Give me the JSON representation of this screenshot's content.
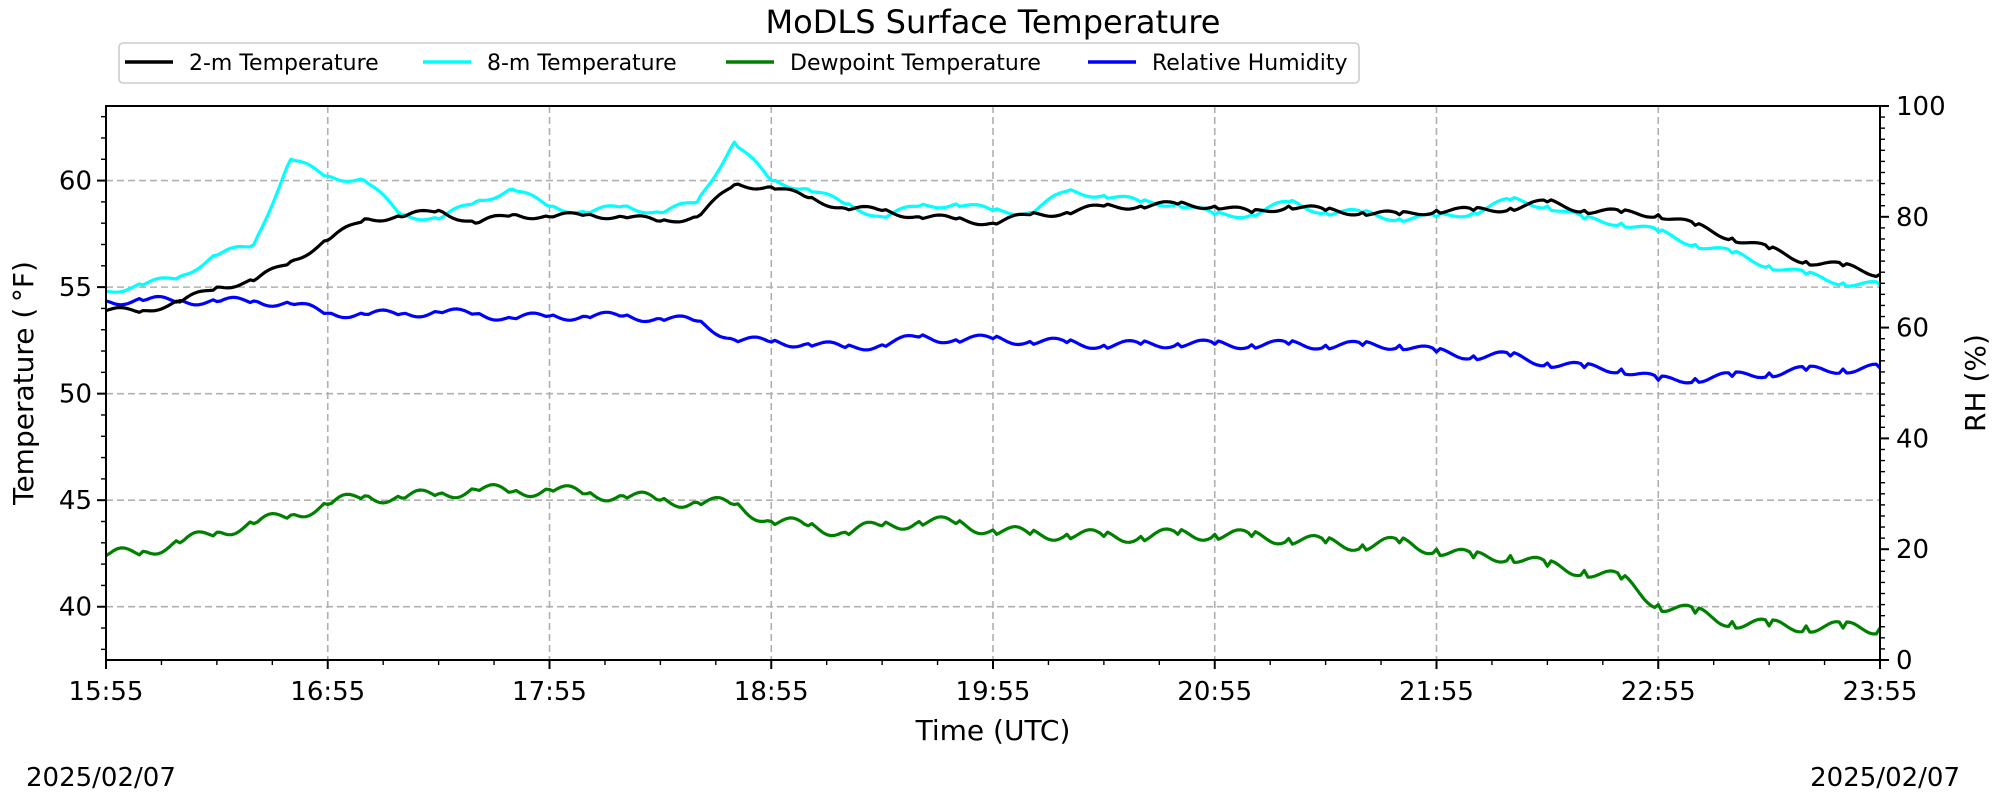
{
  "chart_data": {
    "type": "line",
    "title": "MoDLS Surface Temperature",
    "xlabel": "Time (UTC)",
    "ylabel": "Temperature ($^\\circ$F)",
    "ylabel_display": "Temperature ( °F)",
    "y2label": "RH (%)",
    "x_ticks": [
      "15:55",
      "16:55",
      "17:55",
      "18:55",
      "19:55",
      "20:55",
      "21:55",
      "22:55",
      "23:55"
    ],
    "xlim": [
      "15:55",
      "23:55"
    ],
    "ylim": [
      37.5,
      63.5
    ],
    "y_ticks": [
      40,
      45,
      50,
      55,
      60
    ],
    "y2lim": [
      0,
      100
    ],
    "y2_ticks": [
      0,
      20,
      40,
      60,
      80,
      100
    ],
    "grid": true,
    "legend_position": "top-left, above plot",
    "date_left": "2025/02/07",
    "date_right": "2025/02/07",
    "series": [
      {
        "name": "2-m Temperature",
        "axis": "left",
        "color": "#000000",
        "points": [
          [
            "15:55",
            53.9
          ],
          [
            "16:05",
            53.9
          ],
          [
            "16:15",
            54.3
          ],
          [
            "16:25",
            55.0
          ],
          [
            "16:35",
            55.3
          ],
          [
            "16:45",
            56.2
          ],
          [
            "16:55",
            57.2
          ],
          [
            "17:05",
            58.2
          ],
          [
            "17:15",
            58.3
          ],
          [
            "17:25",
            58.6
          ],
          [
            "17:35",
            58.0
          ],
          [
            "17:45",
            58.4
          ],
          [
            "17:55",
            58.3
          ],
          [
            "18:05",
            58.4
          ],
          [
            "18:15",
            58.3
          ],
          [
            "18:25",
            58.1
          ],
          [
            "18:35",
            58.3
          ],
          [
            "18:45",
            59.8
          ],
          [
            "18:55",
            59.7
          ],
          [
            "19:05",
            59.2
          ],
          [
            "19:15",
            58.7
          ],
          [
            "19:25",
            58.6
          ],
          [
            "19:35",
            58.3
          ],
          [
            "19:45",
            58.2
          ],
          [
            "19:55",
            58.0
          ],
          [
            "20:05",
            58.4
          ],
          [
            "20:15",
            58.5
          ],
          [
            "20:25",
            58.8
          ],
          [
            "20:35",
            58.8
          ],
          [
            "20:45",
            58.9
          ],
          [
            "20:55",
            58.8
          ],
          [
            "21:05",
            58.5
          ],
          [
            "21:15",
            58.8
          ],
          [
            "21:25",
            58.6
          ],
          [
            "21:35",
            58.5
          ],
          [
            "21:45",
            58.4
          ],
          [
            "21:55",
            58.6
          ],
          [
            "22:05",
            58.6
          ],
          [
            "22:15",
            58.7
          ],
          [
            "22:25",
            59.0
          ],
          [
            "22:35",
            58.6
          ],
          [
            "22:45",
            58.5
          ],
          [
            "22:55",
            58.4
          ],
          [
            "23:05",
            57.9
          ],
          [
            "23:15",
            57.3
          ],
          [
            "23:25",
            56.8
          ],
          [
            "23:35",
            56.2
          ],
          [
            "23:45",
            56.0
          ],
          [
            "23:55",
            55.6
          ]
        ]
      },
      {
        "name": "8-m Temperature",
        "axis": "left",
        "color": "#00ffff",
        "points": [
          [
            "15:55",
            54.8
          ],
          [
            "16:05",
            55.1
          ],
          [
            "16:15",
            55.5
          ],
          [
            "16:25",
            56.5
          ],
          [
            "16:35",
            57.0
          ],
          [
            "16:45",
            61.0
          ],
          [
            "16:55",
            60.2
          ],
          [
            "17:05",
            60.0
          ],
          [
            "17:15",
            58.4
          ],
          [
            "17:25",
            58.2
          ],
          [
            "17:35",
            59.0
          ],
          [
            "17:45",
            59.6
          ],
          [
            "17:55",
            58.8
          ],
          [
            "18:05",
            58.5
          ],
          [
            "18:15",
            58.8
          ],
          [
            "18:25",
            58.5
          ],
          [
            "18:35",
            59.0
          ],
          [
            "18:45",
            61.8
          ],
          [
            "18:55",
            60.0
          ],
          [
            "19:05",
            59.6
          ],
          [
            "19:15",
            58.9
          ],
          [
            "19:25",
            58.3
          ],
          [
            "19:35",
            58.8
          ],
          [
            "19:45",
            58.9
          ],
          [
            "19:55",
            58.6
          ],
          [
            "20:05",
            58.5
          ],
          [
            "20:15",
            59.5
          ],
          [
            "20:25",
            59.3
          ],
          [
            "20:35",
            59.0
          ],
          [
            "20:45",
            58.9
          ],
          [
            "20:55",
            58.4
          ],
          [
            "21:05",
            58.4
          ],
          [
            "21:15",
            59.0
          ],
          [
            "21:25",
            58.5
          ],
          [
            "21:35",
            58.5
          ],
          [
            "21:45",
            58.2
          ],
          [
            "21:55",
            58.3
          ],
          [
            "22:05",
            58.5
          ],
          [
            "22:15",
            59.1
          ],
          [
            "22:25",
            58.8
          ],
          [
            "22:35",
            58.2
          ],
          [
            "22:45",
            58.0
          ],
          [
            "22:55",
            57.6
          ],
          [
            "23:05",
            57.0
          ],
          [
            "23:15",
            56.6
          ],
          [
            "23:25",
            56.0
          ],
          [
            "23:35",
            55.6
          ],
          [
            "23:45",
            55.2
          ],
          [
            "23:55",
            55.1
          ]
        ]
      },
      {
        "name": "Dewpoint Temperature",
        "axis": "left",
        "color": "#008000",
        "points": [
          [
            "15:55",
            42.4
          ],
          [
            "16:05",
            42.6
          ],
          [
            "16:15",
            43.0
          ],
          [
            "16:25",
            43.5
          ],
          [
            "16:35",
            43.9
          ],
          [
            "16:45",
            44.3
          ],
          [
            "16:55",
            44.8
          ],
          [
            "17:05",
            45.2
          ],
          [
            "17:15",
            45.1
          ],
          [
            "17:25",
            45.3
          ],
          [
            "17:35",
            45.5
          ],
          [
            "17:45",
            45.4
          ],
          [
            "17:55",
            45.5
          ],
          [
            "18:05",
            45.3
          ],
          [
            "18:15",
            45.2
          ],
          [
            "18:25",
            45.0
          ],
          [
            "18:35",
            44.9
          ],
          [
            "18:45",
            44.8
          ],
          [
            "18:55",
            44.0
          ],
          [
            "19:05",
            43.8
          ],
          [
            "19:15",
            43.5
          ],
          [
            "19:25",
            43.8
          ],
          [
            "19:35",
            44.0
          ],
          [
            "19:45",
            43.9
          ],
          [
            "19:55",
            43.6
          ],
          [
            "20:05",
            43.4
          ],
          [
            "20:15",
            43.4
          ],
          [
            "20:25",
            43.3
          ],
          [
            "20:35",
            43.3
          ],
          [
            "20:45",
            43.4
          ],
          [
            "20:55",
            43.4
          ],
          [
            "21:05",
            43.3
          ],
          [
            "21:15",
            43.2
          ],
          [
            "21:25",
            43.0
          ],
          [
            "21:35",
            42.9
          ],
          [
            "21:45",
            43.0
          ],
          [
            "21:55",
            42.7
          ],
          [
            "22:05",
            42.3
          ],
          [
            "22:15",
            42.4
          ],
          [
            "22:25",
            41.9
          ],
          [
            "22:35",
            41.7
          ],
          [
            "22:45",
            41.3
          ],
          [
            "22:55",
            40.1
          ],
          [
            "23:05",
            39.7
          ],
          [
            "23:15",
            39.3
          ],
          [
            "23:25",
            39.1
          ],
          [
            "23:35",
            39.1
          ],
          [
            "23:45",
            39.0
          ],
          [
            "23:55",
            39.0
          ]
        ]
      },
      {
        "name": "Relative Humidity",
        "axis": "right",
        "color": "#0000ff",
        "points": [
          [
            "15:55",
            64.8
          ],
          [
            "16:05",
            64.9
          ],
          [
            "16:15",
            64.9
          ],
          [
            "16:25",
            64.7
          ],
          [
            "16:35",
            64.8
          ],
          [
            "16:45",
            64.3
          ],
          [
            "16:55",
            62.6
          ],
          [
            "17:05",
            62.4
          ],
          [
            "17:15",
            62.5
          ],
          [
            "17:25",
            62.8
          ],
          [
            "17:35",
            62.5
          ],
          [
            "17:45",
            61.7
          ],
          [
            "17:55",
            62.1
          ],
          [
            "18:05",
            62.0
          ],
          [
            "18:15",
            62.1
          ],
          [
            "18:25",
            61.6
          ],
          [
            "18:35",
            61.2
          ],
          [
            "18:45",
            57.8
          ],
          [
            "18:55",
            57.4
          ],
          [
            "19:05",
            57.1
          ],
          [
            "19:15",
            56.4
          ],
          [
            "19:25",
            56.9
          ],
          [
            "19:35",
            58.3
          ],
          [
            "19:45",
            57.8
          ],
          [
            "19:55",
            58.0
          ],
          [
            "20:05",
            57.5
          ],
          [
            "20:15",
            57.3
          ],
          [
            "20:25",
            56.8
          ],
          [
            "20:35",
            57.0
          ],
          [
            "20:45",
            57.1
          ],
          [
            "20:55",
            57.0
          ],
          [
            "21:05",
            56.9
          ],
          [
            "21:15",
            57.0
          ],
          [
            "21:25",
            56.8
          ],
          [
            "21:35",
            56.8
          ],
          [
            "21:45",
            56.8
          ],
          [
            "21:55",
            55.6
          ],
          [
            "22:05",
            54.9
          ],
          [
            "22:15",
            54.9
          ],
          [
            "22:25",
            53.6
          ],
          [
            "22:35",
            52.8
          ],
          [
            "22:45",
            52.5
          ],
          [
            "22:55",
            50.5
          ],
          [
            "23:05",
            50.8
          ],
          [
            "23:15",
            51.2
          ],
          [
            "23:25",
            51.8
          ],
          [
            "23:35",
            52.3
          ],
          [
            "23:45",
            52.5
          ],
          [
            "23:55",
            52.7
          ]
        ]
      }
    ]
  }
}
